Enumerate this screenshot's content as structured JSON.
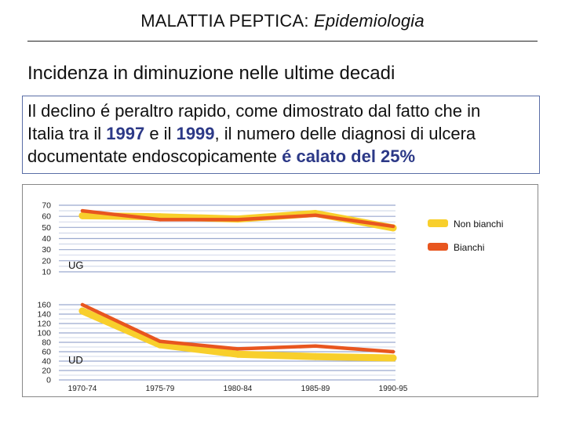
{
  "title": {
    "main": "MALATTIA PEPTICA:",
    "italic": "Epidemiologia"
  },
  "subtitle": "Incidenza in diminuzione nelle ultime decadi",
  "box": {
    "line1": "Il declino é peraltro rapido, come dimostrato dal fatto che in",
    "l2_a": "Italia tra il ",
    "l2_b": "1997",
    "l2_c": " e il ",
    "l2_d": "1999",
    "l2_e": ", il numero delle diagnosi di ulcera",
    "l3_a": "documentate endoscopicamente ",
    "l3_b": "é calato del 25%"
  },
  "colors": {
    "non_bianchi": "#f8cf2c",
    "bianchi": "#e8561f",
    "grid": "#9ba9cf"
  },
  "chart_data": [
    {
      "type": "line",
      "panel_label": "UG",
      "categories": [
        "1970-74",
        "1975-79",
        "1980-84",
        "1985-89",
        "1990-95"
      ],
      "y_ticks": [
        "70",
        "60",
        "50",
        "40",
        "30",
        "20",
        "10"
      ],
      "ylim": [
        10,
        70
      ],
      "series": [
        {
          "name": "Non bianchi",
          "values": [
            62,
            61,
            59,
            64,
            51
          ]
        },
        {
          "name": "Bianchi",
          "values": [
            65,
            57,
            57,
            61,
            51
          ]
        }
      ]
    },
    {
      "type": "line",
      "panel_label": "UD",
      "categories": [
        "1970-74",
        "1975-79",
        "1980-84",
        "1985-89",
        "1990-95"
      ],
      "y_ticks": [
        "160",
        "140",
        "120",
        "100",
        "80",
        "60",
        "40",
        "20",
        "0"
      ],
      "ylim": [
        0,
        160
      ],
      "series": [
        {
          "name": "Non bianchi",
          "values": [
            150,
            78,
            58,
            53,
            50
          ]
        },
        {
          "name": "Bianchi",
          "values": [
            160,
            82,
            66,
            72,
            60
          ]
        }
      ]
    }
  ],
  "legend": [
    {
      "label": "Non bianchi",
      "color": "#f8cf2c"
    },
    {
      "label": "Bianchi",
      "color": "#e8561f"
    }
  ]
}
